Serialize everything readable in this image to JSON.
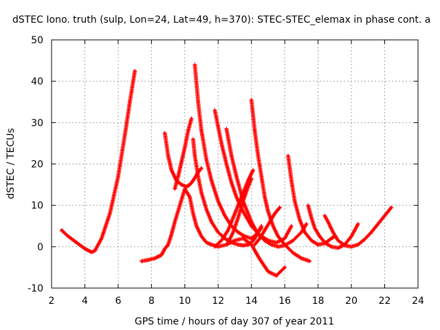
{
  "chart_data": {
    "type": "scatter",
    "title": "dSTEC Iono. truth (sulp, Lon=24, Lat=49, h=370): STEC-STEC_elemax in phase cont. a",
    "xlabel": "GPS time / hours of day 307 of year 2011",
    "ylabel": "dSTEC  / TECUs",
    "xlim": [
      2,
      24
    ],
    "ylim": [
      -10,
      50
    ],
    "xticks": [
      "2",
      "4",
      "6",
      "8",
      "10",
      "12",
      "14",
      "16",
      "18",
      "20",
      "22",
      "24"
    ],
    "yticks": [
      "-10",
      "0",
      "10",
      "20",
      "30",
      "40",
      "50"
    ],
    "grid": true,
    "marker": "plus",
    "color": "#ff0000",
    "series": [
      {
        "x": [
          2.6,
          3.0,
          3.5,
          4.0,
          4.4,
          4.6,
          5.0,
          5.5,
          6.0,
          6.4,
          6.7,
          7.0
        ],
        "y": [
          4.0,
          2.5,
          1.0,
          -0.5,
          -1.3,
          -1.0,
          2.0,
          8.0,
          17.0,
          27.0,
          35.0,
          42.5
        ]
      },
      {
        "x": [
          7.4,
          7.8,
          8.2,
          8.6,
          8.8,
          9.0,
          9.2,
          9.4,
          9.7,
          10.0,
          10.3,
          10.5,
          10.7,
          11.0,
          11.3,
          11.6,
          12.0,
          12.5,
          13.0,
          13.5,
          14.0,
          14.5,
          15.0,
          15.5,
          16.0
        ],
        "y": [
          -3.5,
          -3.2,
          -2.8,
          -2.0,
          -0.5,
          0.5,
          3.0,
          6.0,
          10.0,
          14.0,
          12.0,
          8.0,
          5.0,
          2.5,
          1.0,
          0.5,
          0.0,
          0.5,
          1.5,
          2.0,
          0.5,
          -3.0,
          -6.0,
          -7.0,
          -5.0
        ]
      },
      {
        "x": [
          8.8,
          9.0,
          9.2,
          9.5,
          9.8,
          10.1,
          10.3,
          10.5,
          10.8,
          11.0
        ],
        "y": [
          27.5,
          22.0,
          18.5,
          16.0,
          15.0,
          14.5,
          15.0,
          16.0,
          18.0,
          19.0
        ]
      },
      {
        "x": [
          9.4,
          9.6,
          9.8,
          10.0,
          10.2,
          10.4
        ],
        "y": [
          14.0,
          17.0,
          20.5,
          24.0,
          28.0,
          31.0
        ]
      },
      {
        "x": [
          10.5,
          10.6,
          10.8,
          11.0,
          11.3,
          11.6,
          12.0,
          12.4,
          12.8,
          13.2,
          13.5,
          13.8,
          14.0,
          14.2,
          14.4,
          14.6
        ],
        "y": [
          26.0,
          22.0,
          17.0,
          13.0,
          9.0,
          6.0,
          3.5,
          2.0,
          1.0,
          0.5,
          0.3,
          0.5,
          1.0,
          2.0,
          3.5,
          5.0
        ]
      },
      {
        "x": [
          10.6,
          10.8,
          11.0,
          11.3,
          11.6,
          12.0,
          12.4,
          12.8,
          13.2,
          13.6,
          14.0,
          14.3,
          14.6
        ],
        "y": [
          44.0,
          35.0,
          28.0,
          21.0,
          16.0,
          11.0,
          7.5,
          5.0,
          3.5,
          2.5,
          2.0,
          3.0,
          4.5
        ]
      },
      {
        "x": [
          11.8,
          12.0,
          12.2,
          12.5,
          12.8,
          13.1,
          13.5,
          14.0,
          14.5,
          15.0,
          15.5,
          16.0,
          16.4
        ],
        "y": [
          33.0,
          29.0,
          25.0,
          20.0,
          15.5,
          12.0,
          8.5,
          5.0,
          2.8,
          1.5,
          1.0,
          2.0,
          5.0
        ]
      },
      {
        "x": [
          12.5,
          12.8,
          13.1,
          13.5,
          14.0,
          14.4,
          14.8,
          15.2,
          15.6,
          16.0,
          16.5,
          17.0,
          17.3
        ],
        "y": [
          28.5,
          22.0,
          17.0,
          11.0,
          6.0,
          3.0,
          1.5,
          0.5,
          0.0,
          0.3,
          1.5,
          3.5,
          5.5
        ]
      },
      {
        "x": [
          14.0,
          14.2,
          14.4,
          14.6,
          14.8,
          15.0,
          15.3,
          15.6,
          16.0,
          16.5,
          17.0,
          17.5
        ],
        "y": [
          35.5,
          28.0,
          22.0,
          17.0,
          12.0,
          8.5,
          5.0,
          2.5,
          0.5,
          -1.5,
          -2.8,
          -3.5
        ]
      },
      {
        "x": [
          16.2,
          16.4,
          16.6,
          16.9,
          17.2,
          17.6,
          18.0,
          18.4,
          18.8,
          19.0
        ],
        "y": [
          22.0,
          16.0,
          11.0,
          6.5,
          3.5,
          1.5,
          0.5,
          0.8,
          2.0,
          2.5
        ]
      },
      {
        "x": [
          17.4,
          17.6,
          17.8,
          18.1,
          18.4,
          18.8,
          19.2,
          19.6,
          20.0,
          20.4
        ],
        "y": [
          10.0,
          7.0,
          4.5,
          2.5,
          1.0,
          0.0,
          -0.3,
          0.5,
          2.5,
          5.5
        ]
      },
      {
        "x": [
          18.4,
          18.6,
          18.9,
          19.2,
          19.6,
          20.0,
          20.4,
          20.8,
          21.2,
          21.6,
          22.0,
          22.4
        ],
        "y": [
          7.5,
          6.0,
          3.5,
          1.5,
          0.3,
          0.0,
          0.5,
          1.8,
          3.5,
          5.5,
          7.5,
          9.5
        ]
      },
      {
        "x": [
          11.8,
          12.2,
          12.6,
          13.0,
          13.4,
          13.8,
          14.1
        ],
        "y": [
          0.0,
          1.5,
          4.0,
          8.0,
          12.0,
          16.0,
          18.5
        ]
      },
      {
        "x": [
          12.6,
          12.9,
          13.2,
          13.5,
          13.8,
          14.0
        ],
        "y": [
          1.0,
          3.5,
          7.0,
          11.0,
          14.5,
          16.5
        ]
      },
      {
        "x": [
          14.2,
          14.5,
          14.8,
          15.1,
          15.4,
          15.7
        ],
        "y": [
          0.5,
          2.0,
          4.0,
          6.0,
          8.0,
          9.5
        ]
      }
    ]
  }
}
